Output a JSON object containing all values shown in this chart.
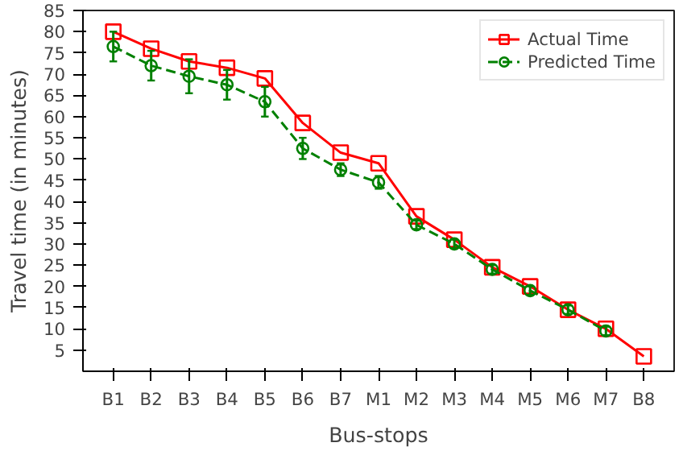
{
  "chart_data": {
    "type": "line",
    "xlabel": "Bus-stops",
    "ylabel": "Travel time (in minutes)",
    "categories": [
      "B1",
      "B2",
      "B3",
      "B4",
      "B5",
      "B6",
      "B7",
      "M1",
      "M2",
      "M3",
      "M4",
      "M5",
      "M6",
      "M7",
      "B8"
    ],
    "ylim": [
      0,
      85
    ],
    "yticks": [
      5,
      10,
      15,
      20,
      25,
      30,
      35,
      40,
      45,
      50,
      55,
      60,
      65,
      70,
      75,
      80,
      85
    ],
    "grid": false,
    "legend": "top right",
    "series": [
      {
        "name": "Actual Time",
        "color": "#ff0000",
        "marker": "square",
        "line_style": "solid",
        "values": [
          80,
          76,
          73,
          71.5,
          69,
          58.5,
          51.5,
          49,
          36.5,
          31,
          24.5,
          20,
          14.5,
          10,
          3.5
        ]
      },
      {
        "name": "Predicted Time",
        "color": "#008000",
        "marker": "circle",
        "line_style": "dashed",
        "values": [
          76.5,
          72,
          69.5,
          67.5,
          63.5,
          52.5,
          47.5,
          44.5,
          34.5,
          30,
          24,
          19,
          14.5,
          9.5,
          null
        ],
        "errors": [
          3.5,
          3.5,
          4,
          3.5,
          3.5,
          2.5,
          1.5,
          1.5,
          1,
          1,
          1,
          1,
          1,
          1,
          null
        ]
      }
    ]
  }
}
